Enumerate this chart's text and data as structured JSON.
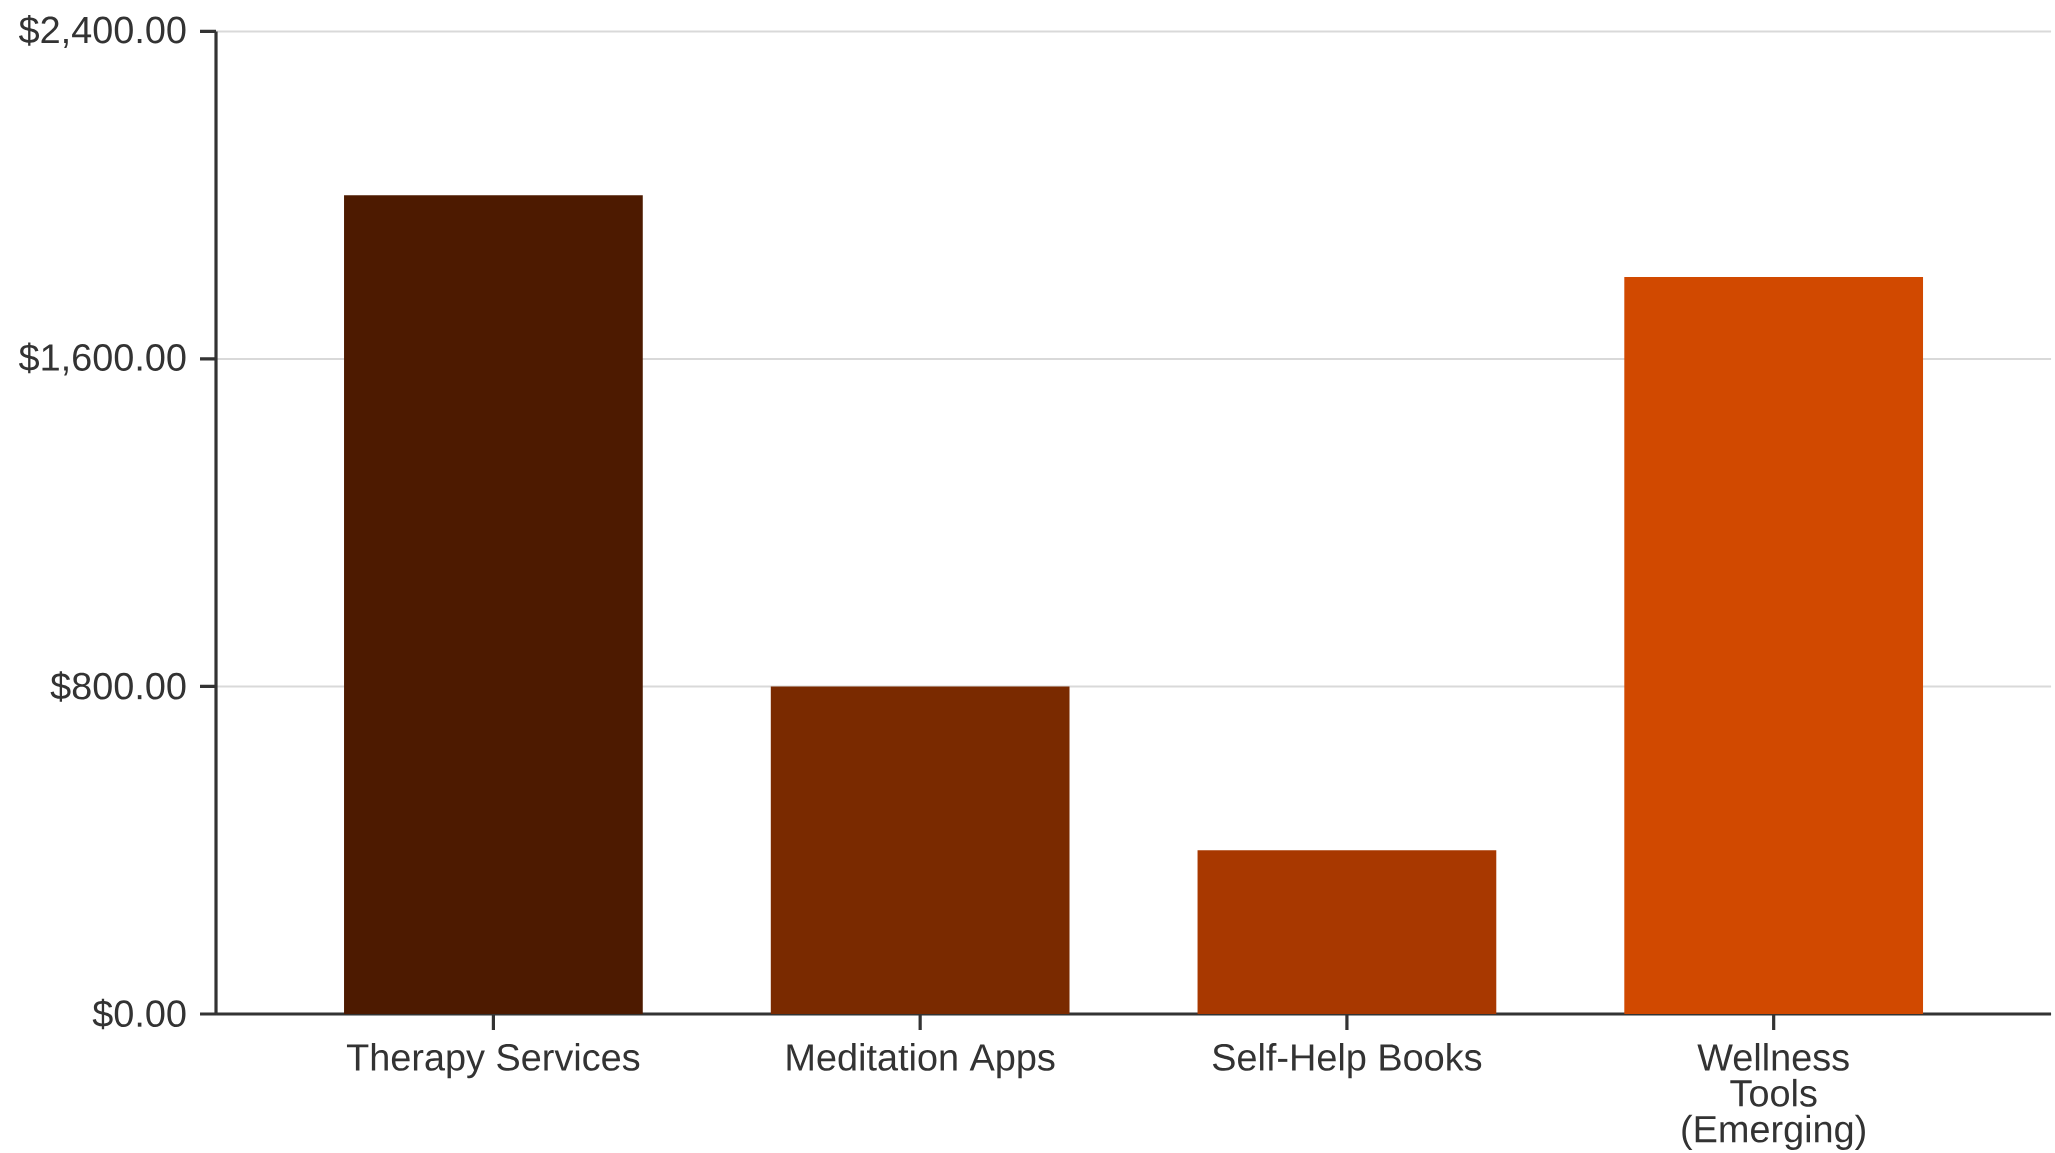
{
  "chart_data": {
    "type": "bar",
    "categories": [
      "Therapy Services",
      "Meditation Apps",
      "Self-Help Books",
      "Wellness Tools (Emerging)"
    ],
    "values": [
      2000,
      800,
      400,
      1800
    ],
    "colors": [
      "#4d1a00",
      "#7a2a00",
      "#a83800",
      "#d14900"
    ],
    "ylim": [
      0,
      2400
    ],
    "yticks": [
      {
        "value": 0,
        "label": "$0.00"
      },
      {
        "value": 800,
        "label": "$800.00"
      },
      {
        "value": 1600,
        "label": "$1,600.00"
      },
      {
        "value": 2400,
        "label": "$2,400.00"
      }
    ],
    "grid": "y"
  }
}
